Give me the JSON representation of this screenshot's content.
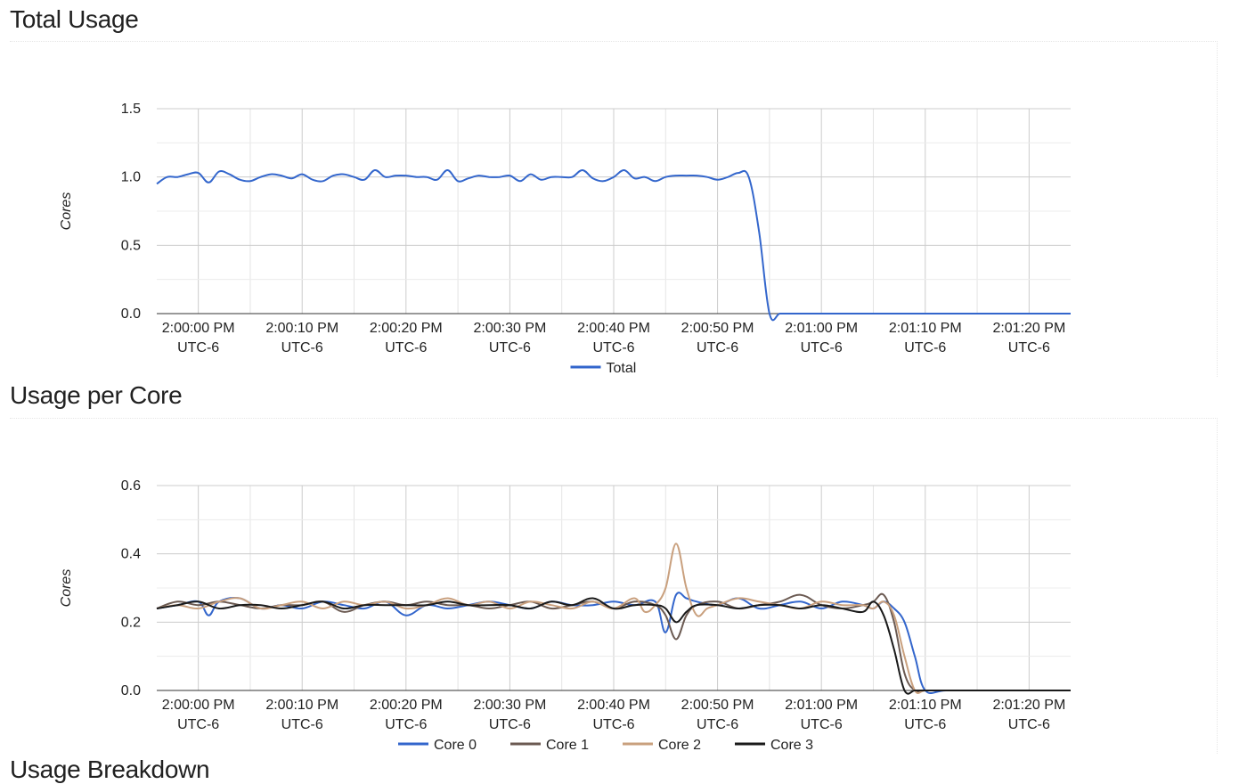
{
  "sections": {
    "total_title": "Total Usage",
    "percore_title": "Usage per Core",
    "breakdown_title": "Usage Breakdown"
  },
  "chart_data": [
    {
      "type": "line",
      "title": "",
      "ylabel": "Cores",
      "xlabel": "",
      "ylim": [
        0,
        1.5
      ],
      "yticks": [
        "0.0",
        "0.5",
        "1.0",
        "1.5"
      ],
      "ytick_values": [
        0,
        0.5,
        1.0,
        1.5
      ],
      "xlim": [
        -4,
        84
      ],
      "xticks": [
        {
          "t": 0,
          "line1": "2:00:00 PM",
          "line2": "UTC-6"
        },
        {
          "t": 10,
          "line1": "2:00:10 PM",
          "line2": "UTC-6"
        },
        {
          "t": 20,
          "line1": "2:00:20 PM",
          "line2": "UTC-6"
        },
        {
          "t": 30,
          "line1": "2:00:30 PM",
          "line2": "UTC-6"
        },
        {
          "t": 40,
          "line1": "2:00:40 PM",
          "line2": "UTC-6"
        },
        {
          "t": 50,
          "line1": "2:00:50 PM",
          "line2": "UTC-6"
        },
        {
          "t": 60,
          "line1": "2:01:00 PM",
          "line2": "UTC-6"
        },
        {
          "t": 70,
          "line1": "2:01:10 PM",
          "line2": "UTC-6"
        },
        {
          "t": 80,
          "line1": "2:01:20 PM",
          "line2": "UTC-6"
        }
      ],
      "grid": true,
      "legend_position": "bottom",
      "series": [
        {
          "name": "Total",
          "color": "#3366cc",
          "x": [
            -4,
            -3,
            -2,
            -1,
            0,
            1,
            2,
            3,
            4,
            5,
            6,
            7,
            8,
            9,
            10,
            11,
            12,
            13,
            14,
            15,
            16,
            17,
            18,
            19,
            20,
            21,
            22,
            23,
            24,
            25,
            26,
            27,
            28,
            29,
            30,
            31,
            32,
            33,
            34,
            35,
            36,
            37,
            38,
            39,
            40,
            41,
            42,
            43,
            44,
            45,
            46,
            47,
            48,
            49,
            50,
            51,
            52,
            53,
            54,
            55,
            56,
            57,
            58,
            59,
            60,
            61,
            62,
            63,
            64,
            65,
            66,
            67,
            68,
            69,
            70,
            72,
            74,
            76,
            78,
            80,
            82,
            84
          ],
          "y": [
            0.95,
            1.0,
            1.0,
            1.02,
            1.03,
            0.96,
            1.04,
            1.02,
            0.98,
            0.97,
            1.0,
            1.02,
            1.01,
            0.99,
            1.02,
            0.98,
            0.97,
            1.01,
            1.02,
            1.0,
            0.98,
            1.05,
            1.0,
            1.01,
            1.01,
            1.0,
            1.0,
            0.98,
            1.05,
            0.97,
            0.99,
            1.01,
            1.0,
            1.0,
            1.01,
            0.97,
            1.02,
            0.98,
            1.0,
            1.0,
            1.0,
            1.05,
            0.99,
            0.97,
            1.0,
            1.05,
            0.99,
            1.0,
            0.97,
            1.0,
            1.01,
            1.01,
            1.01,
            1.0,
            0.98,
            1.0,
            1.03,
            1.0,
            0.6,
            0.0,
            0.0,
            0.0,
            0.0,
            0.0,
            0.0,
            0.0,
            0.0,
            0.0,
            0.0,
            0.0,
            0.0,
            0.0,
            0.0,
            0.0,
            0.0,
            0.0,
            0.0,
            0.0,
            0.0,
            0.0,
            0.0,
            0.0
          ]
        }
      ]
    },
    {
      "type": "line",
      "title": "",
      "ylabel": "Cores",
      "xlabel": "",
      "ylim": [
        0,
        0.6
      ],
      "yticks": [
        "0.0",
        "0.2",
        "0.4",
        "0.6"
      ],
      "ytick_values": [
        0,
        0.2,
        0.4,
        0.6
      ],
      "xlim": [
        -4,
        84
      ],
      "xticks": [
        {
          "t": 0,
          "line1": "2:00:00 PM",
          "line2": "UTC-6"
        },
        {
          "t": 10,
          "line1": "2:00:10 PM",
          "line2": "UTC-6"
        },
        {
          "t": 20,
          "line1": "2:00:20 PM",
          "line2": "UTC-6"
        },
        {
          "t": 30,
          "line1": "2:00:30 PM",
          "line2": "UTC-6"
        },
        {
          "t": 40,
          "line1": "2:00:40 PM",
          "line2": "UTC-6"
        },
        {
          "t": 50,
          "line1": "2:00:50 PM",
          "line2": "UTC-6"
        },
        {
          "t": 60,
          "line1": "2:01:00 PM",
          "line2": "UTC-6"
        },
        {
          "t": 70,
          "line1": "2:01:10 PM",
          "line2": "UTC-6"
        },
        {
          "t": 80,
          "line1": "2:01:20 PM",
          "line2": "UTC-6"
        }
      ],
      "grid": true,
      "legend_position": "bottom",
      "series": [
        {
          "name": "Core 0",
          "color": "#3366cc",
          "x": [
            -4,
            -2,
            0,
            1,
            2,
            4,
            6,
            8,
            10,
            12,
            14,
            16,
            18,
            20,
            22,
            24,
            26,
            28,
            30,
            32,
            34,
            36,
            38,
            40,
            42,
            44,
            45,
            46,
            47,
            48,
            50,
            52,
            54,
            56,
            58,
            60,
            62,
            64,
            65,
            66,
            67,
            68,
            69,
            70,
            72,
            76,
            80,
            84
          ],
          "y": [
            0.24,
            0.25,
            0.26,
            0.22,
            0.26,
            0.27,
            0.24,
            0.25,
            0.24,
            0.26,
            0.25,
            0.24,
            0.26,
            0.22,
            0.25,
            0.24,
            0.25,
            0.26,
            0.25,
            0.24,
            0.26,
            0.25,
            0.25,
            0.26,
            0.25,
            0.26,
            0.17,
            0.28,
            0.27,
            0.26,
            0.25,
            0.27,
            0.24,
            0.25,
            0.26,
            0.24,
            0.26,
            0.25,
            0.24,
            0.26,
            0.24,
            0.2,
            0.1,
            0.0,
            0.0,
            0.0,
            0.0,
            0.0
          ]
        },
        {
          "name": "Core 1",
          "color": "#6b5a52",
          "x": [
            -4,
            -2,
            0,
            2,
            4,
            6,
            8,
            10,
            12,
            14,
            16,
            18,
            20,
            22,
            24,
            26,
            28,
            30,
            32,
            34,
            36,
            38,
            40,
            42,
            44,
            45,
            46,
            47,
            48,
            50,
            52,
            54,
            56,
            58,
            60,
            62,
            64,
            65,
            66,
            67,
            68,
            69,
            70,
            72,
            76,
            80,
            84
          ],
          "y": [
            0.24,
            0.26,
            0.25,
            0.26,
            0.25,
            0.24,
            0.25,
            0.25,
            0.26,
            0.23,
            0.25,
            0.26,
            0.25,
            0.26,
            0.25,
            0.25,
            0.24,
            0.25,
            0.26,
            0.24,
            0.25,
            0.26,
            0.24,
            0.26,
            0.25,
            0.22,
            0.15,
            0.22,
            0.25,
            0.26,
            0.24,
            0.25,
            0.26,
            0.28,
            0.25,
            0.24,
            0.25,
            0.26,
            0.28,
            0.2,
            0.05,
            0.0,
            0.0,
            0.0,
            0.0,
            0.0,
            0.0
          ]
        },
        {
          "name": "Core 2",
          "color": "#c9a07e",
          "x": [
            -4,
            -2,
            0,
            2,
            4,
            6,
            8,
            10,
            12,
            14,
            16,
            18,
            20,
            22,
            24,
            26,
            28,
            30,
            32,
            34,
            36,
            38,
            40,
            42,
            43,
            44,
            45,
            46,
            47,
            48,
            49,
            50,
            52,
            54,
            56,
            58,
            60,
            62,
            64,
            65,
            66,
            67,
            68,
            69,
            70,
            72,
            76,
            80,
            84
          ],
          "y": [
            0.24,
            0.25,
            0.24,
            0.26,
            0.27,
            0.24,
            0.25,
            0.26,
            0.24,
            0.26,
            0.25,
            0.26,
            0.24,
            0.25,
            0.27,
            0.25,
            0.26,
            0.24,
            0.26,
            0.25,
            0.24,
            0.26,
            0.24,
            0.27,
            0.23,
            0.25,
            0.3,
            0.43,
            0.3,
            0.22,
            0.24,
            0.25,
            0.27,
            0.26,
            0.25,
            0.24,
            0.26,
            0.25,
            0.25,
            0.24,
            0.26,
            0.22,
            0.1,
            0.0,
            0.0,
            0.0,
            0.0,
            0.0,
            0.0
          ]
        },
        {
          "name": "Core 3",
          "color": "#1a1a1a",
          "x": [
            -4,
            -2,
            0,
            2,
            4,
            6,
            8,
            10,
            12,
            14,
            16,
            18,
            20,
            22,
            24,
            26,
            28,
            30,
            32,
            34,
            36,
            38,
            40,
            42,
            44,
            45,
            46,
            47,
            48,
            50,
            52,
            54,
            56,
            58,
            60,
            62,
            64,
            65,
            66,
            67,
            68,
            69,
            70,
            72,
            76,
            80,
            84
          ],
          "y": [
            0.24,
            0.25,
            0.26,
            0.24,
            0.25,
            0.25,
            0.24,
            0.25,
            0.26,
            0.24,
            0.25,
            0.25,
            0.25,
            0.25,
            0.26,
            0.25,
            0.25,
            0.25,
            0.24,
            0.26,
            0.25,
            0.27,
            0.24,
            0.25,
            0.25,
            0.24,
            0.2,
            0.23,
            0.25,
            0.25,
            0.24,
            0.25,
            0.25,
            0.24,
            0.25,
            0.24,
            0.23,
            0.26,
            0.22,
            0.12,
            0.0,
            0.0,
            0.0,
            0.0,
            0.0,
            0.0,
            0.0
          ]
        }
      ]
    }
  ]
}
